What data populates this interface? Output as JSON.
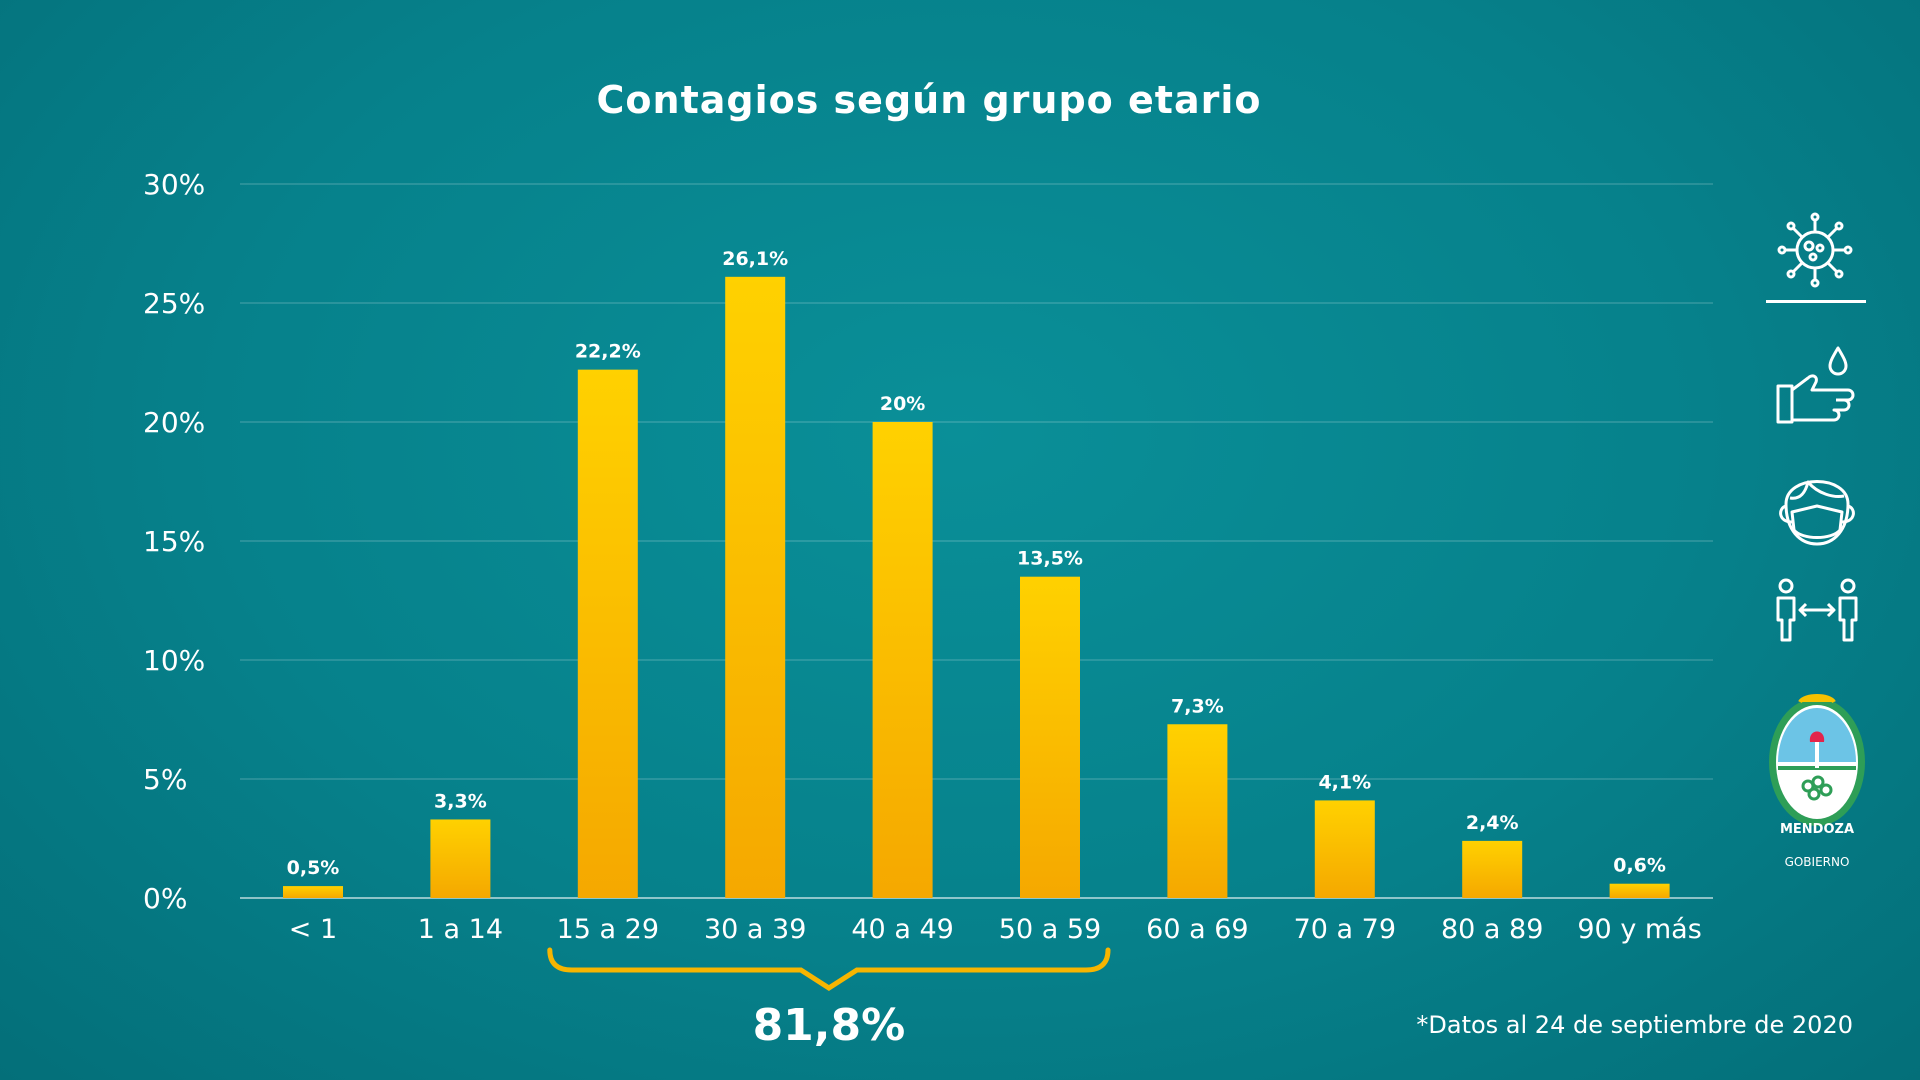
{
  "chart_data": {
    "type": "bar",
    "title": "Contagios según grupo etario",
    "categories": [
      "< 1",
      "1 a 14",
      "15 a 29",
      "30 a 39",
      "40 a 49",
      "50 a 59",
      "60 a 69",
      "70 a 79",
      "80 a 89",
      "90 y más"
    ],
    "values": [
      0.5,
      3.3,
      22.2,
      26.1,
      20,
      13.5,
      7.3,
      4.1,
      2.4,
      0.6
    ],
    "value_labels": [
      "0,5%",
      "3,3%",
      "22,2%",
      "26,1%",
      "20%",
      "13,5%",
      "7,3%",
      "4,1%",
      "2,4%",
      "0,6%"
    ],
    "y_ticks": [
      0,
      5,
      10,
      15,
      20,
      25,
      30
    ],
    "y_tick_labels": [
      "0%",
      "5%",
      "10%",
      "15%",
      "20%",
      "25%",
      "30%"
    ],
    "ylim": [
      0,
      30
    ],
    "grid": true,
    "bar_color": "#f7b500",
    "annotation": {
      "text": "81,8%",
      "categories": [
        "15 a 29",
        "30 a 39",
        "40 a 49",
        "50 a 59"
      ]
    },
    "footnote": "*Datos al 24 de septiembre de 2020"
  },
  "sidebar": {
    "icons": [
      "virus-icon",
      "hand-wash-icon",
      "face-mask-icon",
      "social-distance-icon"
    ],
    "logo": "mendoza-gobierno-logo",
    "logo_text_1": "MENDOZA",
    "logo_text_2": "GOBIERNO"
  },
  "colors": {
    "accent": "#f7b500",
    "background": "#06818b",
    "text": "#ffffff"
  }
}
